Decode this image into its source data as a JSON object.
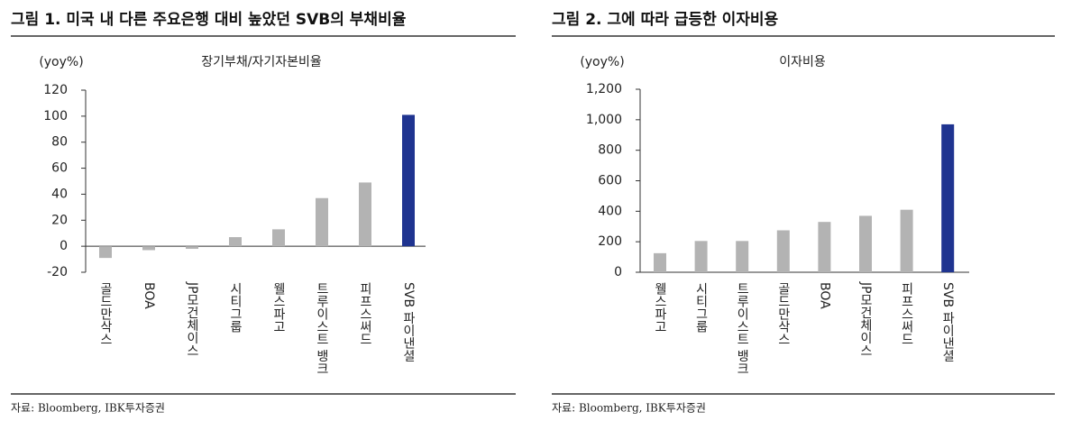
{
  "chart_data": [
    {
      "type": "bar",
      "figure_title": "그림 1. 미국 내 다른 주요은행 대비 높았던 SVB의 부채비율",
      "y_unit": "(yoy%)",
      "subtitle": "장기부채/자기자본비율",
      "categories": [
        "골드만삭스",
        "BOA",
        "JP모건체이스",
        "시티그룹",
        "웰스파고",
        "트루이스트 뱅크",
        "피프스써드",
        "SVB 파이낸셜"
      ],
      "values": [
        -9,
        -3,
        -2,
        7,
        13,
        37,
        49,
        101
      ],
      "colors": [
        "#b3b3b3",
        "#b3b3b3",
        "#b3b3b3",
        "#b3b3b3",
        "#b3b3b3",
        "#b3b3b3",
        "#b3b3b3",
        "#1f3490"
      ],
      "ylim": [
        -20,
        120
      ],
      "yticks": [
        -20,
        0,
        20,
        40,
        60,
        80,
        100,
        120
      ],
      "source": "자료: Bloomberg, IBK투자증권"
    },
    {
      "type": "bar",
      "figure_title": "그림 2. 그에 따라 급등한 이자비용",
      "y_unit": "(yoy%)",
      "subtitle": "이자비용",
      "categories": [
        "웰스파고",
        "시티그룹",
        "트루이스트 뱅크",
        "골드만삭스",
        "BOA",
        "JP모건체이스",
        "피프스써드",
        "SVB 파이낸셜"
      ],
      "values": [
        125,
        205,
        205,
        275,
        330,
        370,
        410,
        970
      ],
      "colors": [
        "#b3b3b3",
        "#b3b3b3",
        "#b3b3b3",
        "#b3b3b3",
        "#b3b3b3",
        "#b3b3b3",
        "#b3b3b3",
        "#1f3490"
      ],
      "ylim": [
        0,
        1200
      ],
      "yticks": [
        0,
        200,
        400,
        600,
        800,
        {
          "value": 1000,
          "label": "1,000"
        },
        {
          "value": 1200,
          "label": "1,200"
        }
      ],
      "source": "자료: Bloomberg, IBK투자증권"
    }
  ]
}
